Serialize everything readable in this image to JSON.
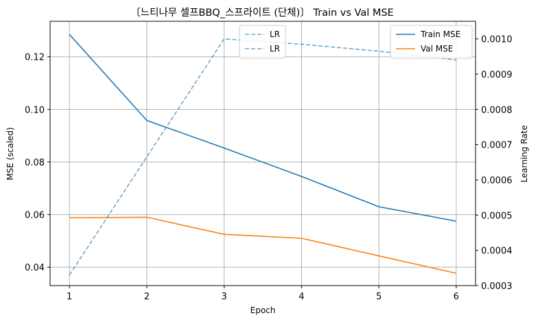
{
  "chart_data": {
    "type": "line",
    "title": "〔느티나무 셀프BBQ_스프라이트 (단체)〕 Train vs Val MSE",
    "xlabel": "Epoch",
    "ylabel": "MSE (scaled)",
    "ylabel_right": "Learning Rate",
    "x": [
      1,
      2,
      3,
      4,
      5,
      6
    ],
    "xticks": [
      "1",
      "2",
      "3",
      "4",
      "5",
      "6"
    ],
    "xlim": [
      0.75,
      6.25
    ],
    "ylim": [
      0.033,
      0.1335
    ],
    "yticks": [
      "0.04",
      "0.06",
      "0.08",
      "0.10",
      "0.12"
    ],
    "ylim_right": [
      0.0003,
      0.00105
    ],
    "yticks_right": [
      "0.0003",
      "0.0004",
      "0.0005",
      "0.0006",
      "0.0007",
      "0.0008",
      "0.0009",
      "0.0010"
    ],
    "grid": true,
    "series": [
      {
        "name": "Train MSE",
        "axis": "left",
        "color": "#1f77b4",
        "style": "solid",
        "values": [
          0.1285,
          0.0958,
          0.0853,
          0.0745,
          0.063,
          0.0575
        ]
      },
      {
        "name": "Val MSE",
        "axis": "left",
        "color": "#ff7f0e",
        "style": "solid",
        "values": [
          0.0588,
          0.059,
          0.0525,
          0.051,
          0.0443,
          0.0377
        ]
      },
      {
        "name": "LR",
        "axis": "right",
        "color": "#1f77b4",
        "style": "dashed",
        "values": [
          0.00033,
          0.000665,
          0.001,
          0.000985,
          0.000965,
          0.00094
        ]
      }
    ],
    "legend_left": {
      "placement": "upper-center",
      "entries": [
        "LR",
        "LR"
      ]
    },
    "legend_right": {
      "placement": "upper-right",
      "entries": [
        "Train MSE",
        "Val MSE"
      ]
    }
  }
}
